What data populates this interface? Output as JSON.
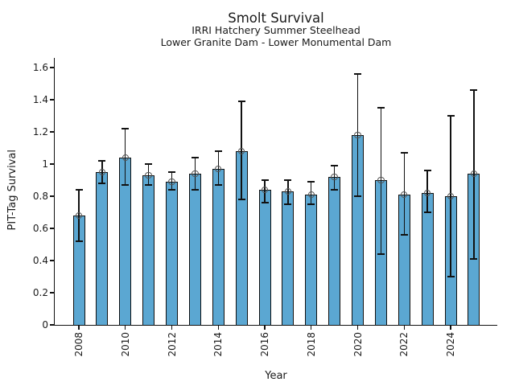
{
  "chart_data": {
    "type": "bar",
    "title": "Smolt Survival",
    "subtitle1": "IRRI Hatchery Summer Steelhead",
    "subtitle2": "Lower Granite Dam - Lower Monumental Dam",
    "xlabel": "Year",
    "ylabel": "PIT-Tag Survival",
    "ylim": [
      0,
      1.66
    ],
    "xlim": [
      2007,
      2026
    ],
    "grid": false,
    "legend": "none",
    "error_bars": true,
    "marker": "open-circle",
    "bar_color": "#5BA7D2",
    "bar_edge_color": "#111111",
    "error_bar_color": "#111111",
    "marker_edge_color": "#555555",
    "text_color": "#1a1a1a",
    "background_color": "#ffffff",
    "xtick_rotation": 90,
    "categories": [
      2008,
      2009,
      2010,
      2011,
      2012,
      2013,
      2014,
      2015,
      2016,
      2017,
      2018,
      2019,
      2020,
      2021,
      2022,
      2023,
      2024,
      2025
    ],
    "values": [
      0.68,
      0.95,
      1.04,
      0.93,
      0.89,
      0.94,
      0.97,
      1.08,
      0.84,
      0.83,
      0.81,
      0.92,
      1.18,
      0.9,
      0.81,
      0.82,
      0.8,
      0.94
    ],
    "error_low": [
      0.52,
      0.88,
      0.87,
      0.87,
      0.84,
      0.84,
      0.87,
      0.78,
      0.76,
      0.75,
      0.75,
      0.84,
      0.8,
      0.44,
      0.56,
      0.7,
      0.3,
      0.41
    ],
    "error_high": [
      0.84,
      1.02,
      1.22,
      1.0,
      0.95,
      1.04,
      1.08,
      1.39,
      0.9,
      0.9,
      0.89,
      0.99,
      1.56,
      1.35,
      1.07,
      0.96,
      1.3,
      1.46
    ],
    "yticks": [
      {
        "v": 0.0,
        "label": "0"
      },
      {
        "v": 0.2,
        "label": "0.2"
      },
      {
        "v": 0.4,
        "label": "0.4"
      },
      {
        "v": 0.6,
        "label": "0.6"
      },
      {
        "v": 0.8,
        "label": "0.8"
      },
      {
        "v": 1.0,
        "label": "1"
      },
      {
        "v": 1.2,
        "label": "1.2"
      },
      {
        "v": 1.4,
        "label": "1.4"
      },
      {
        "v": 1.6,
        "label": "1.6"
      }
    ],
    "xticks": [
      {
        "year": 2008,
        "label": "2008"
      },
      {
        "year": 2010,
        "label": "2010"
      },
      {
        "year": 2012,
        "label": "2012"
      },
      {
        "year": 2014,
        "label": "2014"
      },
      {
        "year": 2016,
        "label": "2016"
      },
      {
        "year": 2018,
        "label": "2018"
      },
      {
        "year": 2020,
        "label": "2020"
      },
      {
        "year": 2022,
        "label": "2022"
      },
      {
        "year": 2024,
        "label": "2024"
      }
    ]
  }
}
